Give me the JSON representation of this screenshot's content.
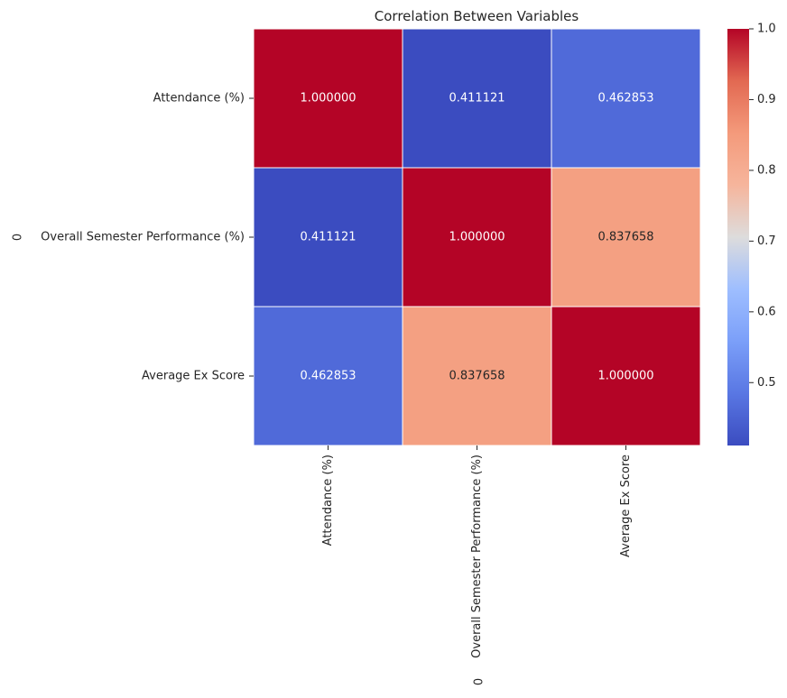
{
  "chart_data": {
    "type": "heatmap",
    "title": "Correlation Between Variables",
    "xlabel": "0",
    "ylabel": "0",
    "row_labels": [
      "Attendance (%)",
      "Overall Semester Performance (%)",
      "Average Ex Score"
    ],
    "col_labels": [
      "Attendance (%)",
      "Overall Semester Performance (%)",
      "Average Ex Score"
    ],
    "values": [
      [
        1.0,
        0.411121,
        0.462853
      ],
      [
        0.411121,
        1.0,
        0.837658
      ],
      [
        0.462853,
        0.837658,
        1.0
      ]
    ],
    "cell_text": [
      [
        "1.000000",
        "0.411121",
        "0.462853"
      ],
      [
        "0.411121",
        "1.000000",
        "0.837658"
      ],
      [
        "0.462853",
        "0.837658",
        "1.000000"
      ]
    ],
    "colorbar": {
      "min": 0.411121,
      "max": 1.0,
      "colormap": "coolwarm",
      "ticks": [
        0.5,
        0.6,
        0.7,
        0.8,
        0.9,
        1.0
      ],
      "tick_labels": [
        "0.5",
        "0.6",
        "0.7",
        "0.8",
        "0.9",
        "1.0"
      ]
    },
    "grid": false
  }
}
